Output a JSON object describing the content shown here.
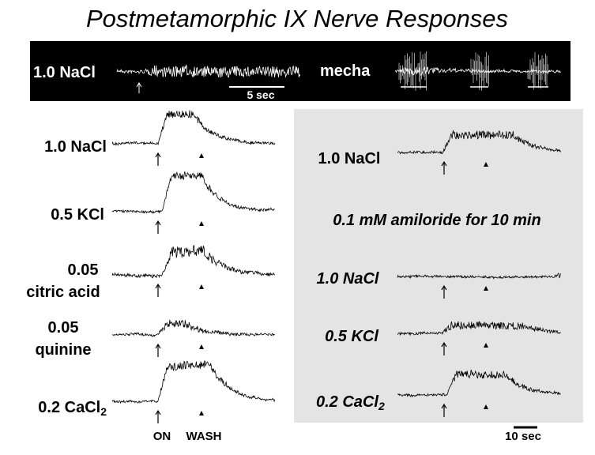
{
  "title": "Postmetamorphic IX Nerve Responses",
  "top_panel": {
    "left_label": "1.0 NaCl",
    "scale_label": "5 sec",
    "right_label": "mecha"
  },
  "left_panel": {
    "rows": [
      {
        "lines": [
          "1.0 NaCl"
        ]
      },
      {
        "lines": [
          "0.5 KCl"
        ]
      },
      {
        "lines": [
          "0.05",
          "citric acid"
        ]
      },
      {
        "lines": [
          "0.05",
          "quinine"
        ]
      },
      {
        "text": "0.2 CaCl",
        "sub": "2"
      }
    ],
    "markers": [
      "ON",
      "WASH"
    ]
  },
  "right_panel": {
    "rows": [
      {
        "text": "1.0 NaCl"
      },
      {
        "text": "0.1 mM amiloride for 10 min"
      },
      {
        "text": "1.0 NaCl"
      },
      {
        "text": "0.5 KCl"
      },
      {
        "text": "0.2 CaCl",
        "sub": "2"
      }
    ],
    "scale_label": "10 sec"
  }
}
